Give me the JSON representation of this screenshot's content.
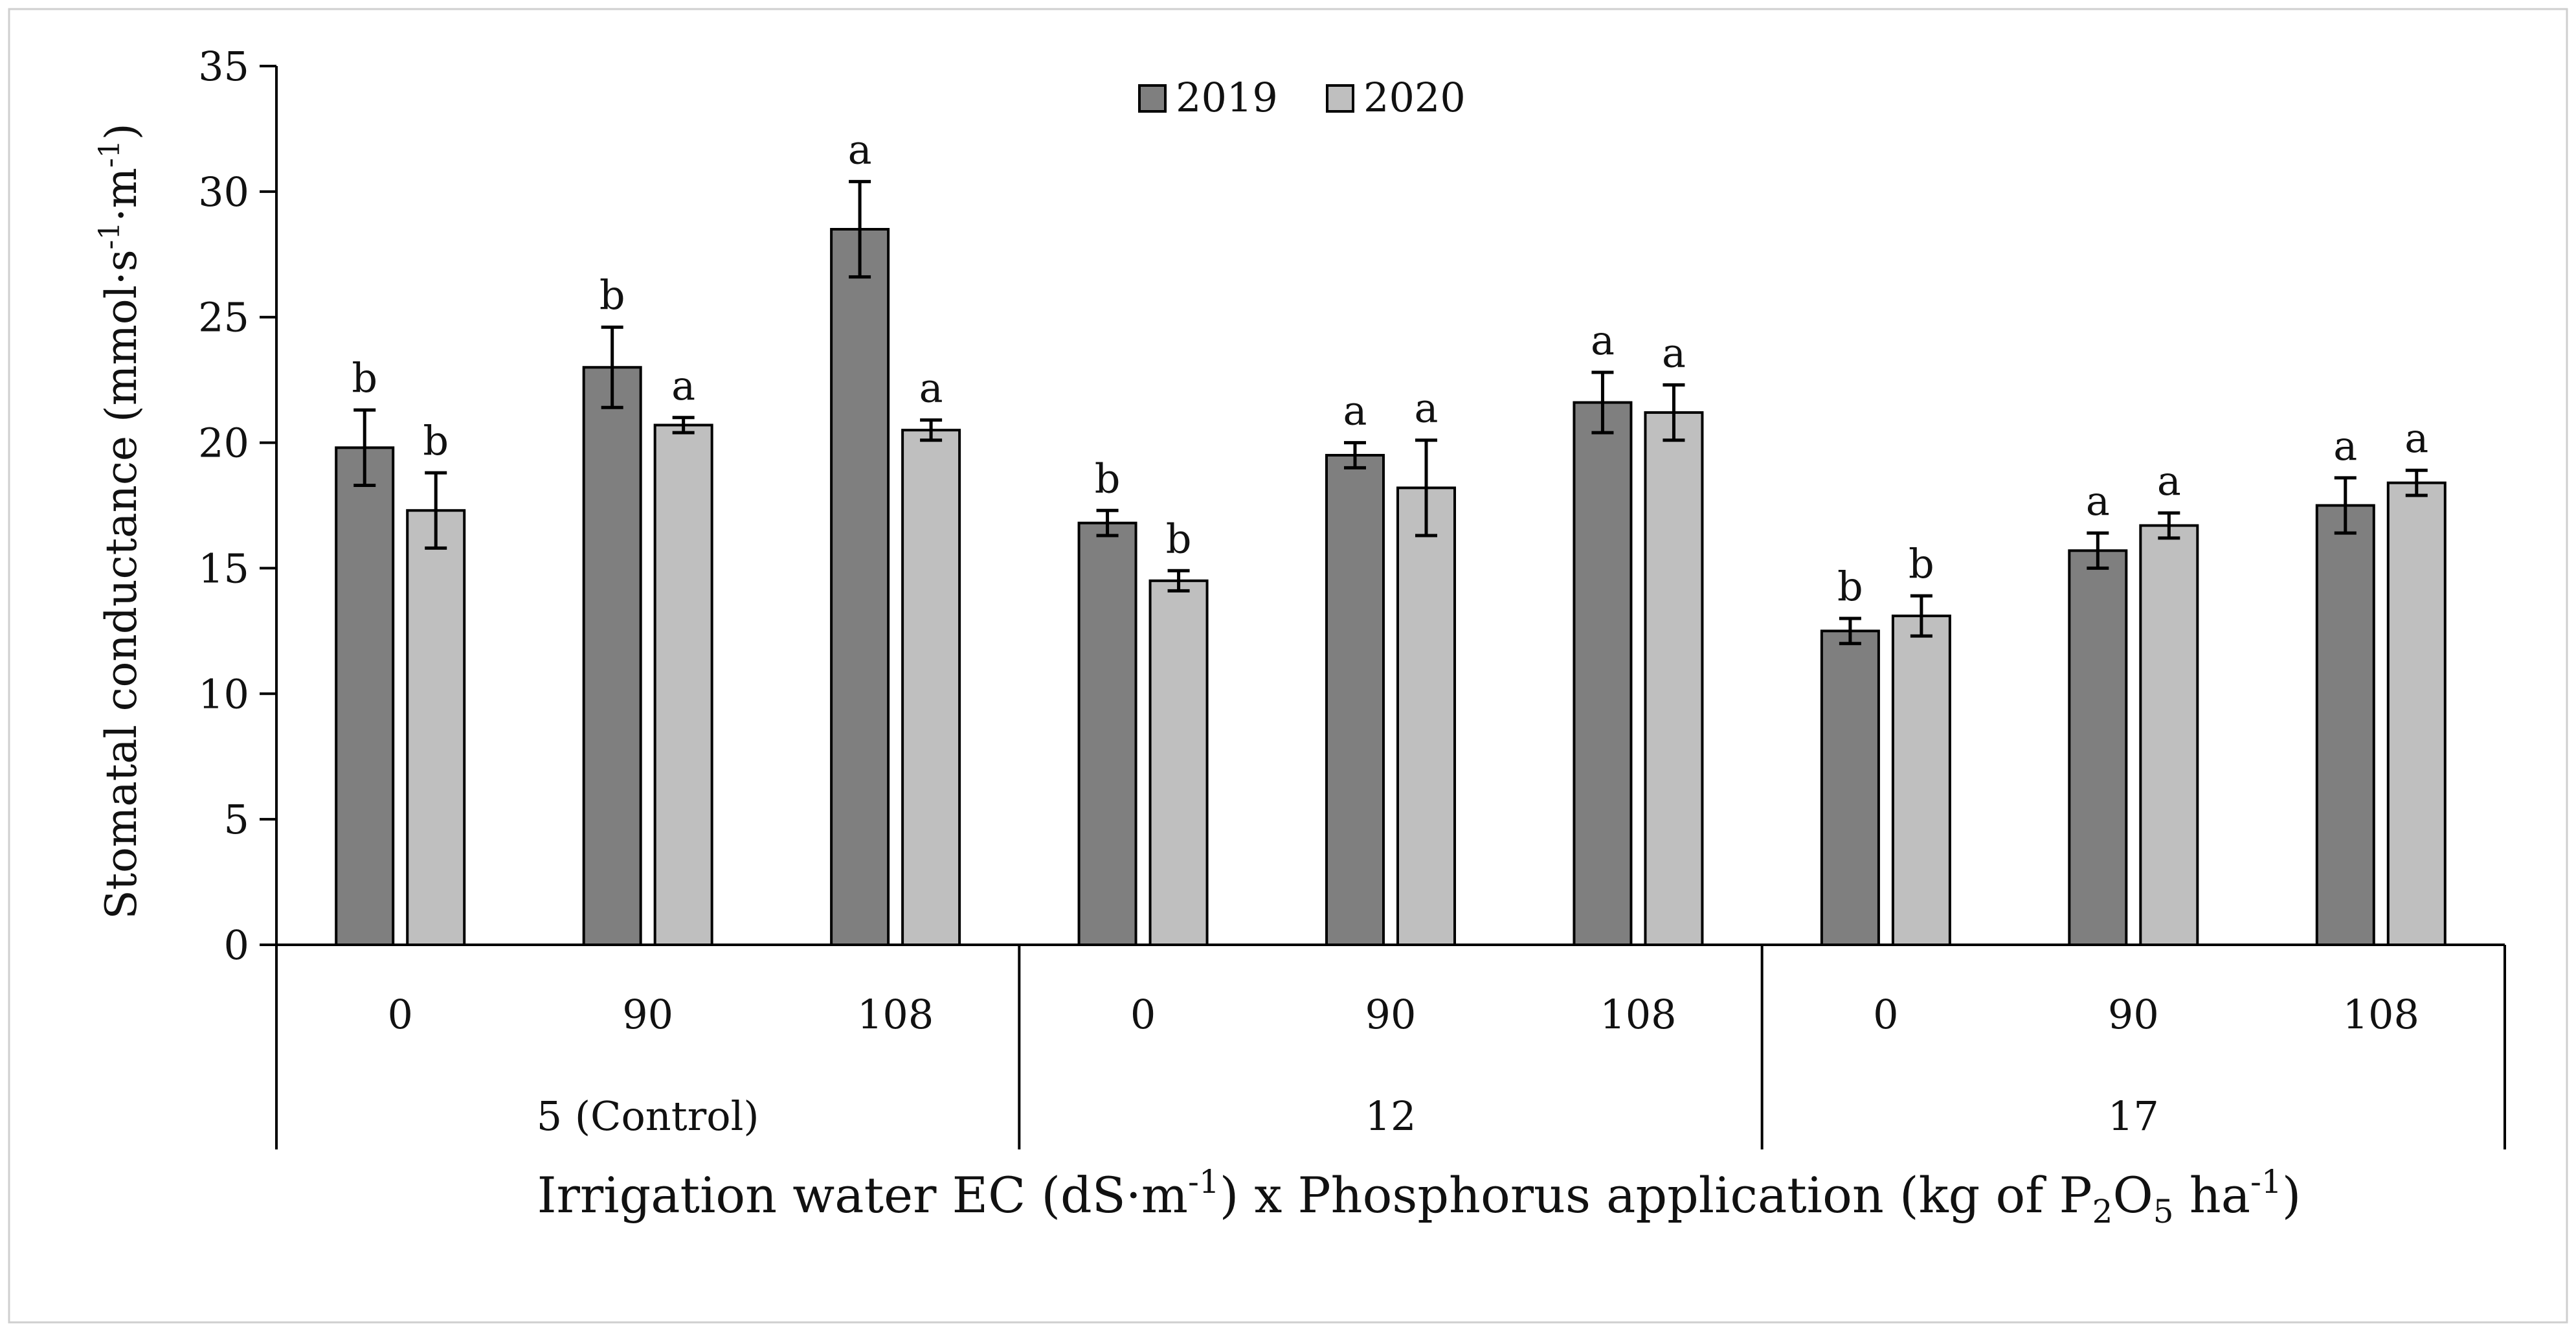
{
  "chart_data": {
    "type": "bar",
    "title": "",
    "ylabel": {
      "main": "Stomatal conductance (mmol·s",
      "sup1": "-1",
      "mid": "·m",
      "sup2": "-1",
      "end": ")"
    },
    "xlabel": {
      "part1": "Irrigation water EC (dS·m",
      "sup1": "-1",
      "part2": ") x Phosphorus application (kg of P",
      "sub1": "2",
      "part3": "O",
      "sub2": "5",
      "part4": " ha",
      "sup2": "-1",
      "part5": ")"
    },
    "ylim": [
      0,
      35
    ],
    "yticks": [
      0,
      5,
      10,
      15,
      20,
      25,
      30,
      35
    ],
    "groups": [
      {
        "label": "5 (Control)",
        "categories": [
          "0",
          "90",
          "108"
        ]
      },
      {
        "label": "12",
        "categories": [
          "0",
          "90",
          "108"
        ]
      },
      {
        "label": "17",
        "categories": [
          "0",
          "90",
          "108"
        ]
      }
    ],
    "series": [
      {
        "name": "2019",
        "color": "#7f7f7f",
        "values": [
          19.8,
          23.0,
          28.5,
          16.8,
          19.5,
          21.6,
          12.5,
          15.7,
          17.5
        ],
        "errors": [
          1.5,
          1.6,
          1.9,
          0.5,
          0.5,
          1.2,
          0.5,
          0.7,
          1.1
        ],
        "letters": [
          "b",
          "b",
          "a",
          "b",
          "a",
          "a",
          "b",
          "a",
          "a"
        ]
      },
      {
        "name": "2020",
        "color": "#bfbfbf",
        "values": [
          17.3,
          20.7,
          20.5,
          14.5,
          18.2,
          21.2,
          13.1,
          16.7,
          18.4
        ],
        "errors": [
          1.5,
          0.3,
          0.4,
          0.4,
          1.9,
          1.1,
          0.8,
          0.5,
          0.5
        ],
        "letters": [
          "b",
          "a",
          "a",
          "b",
          "a",
          "a",
          "b",
          "a",
          "a"
        ]
      }
    ],
    "legend_position": "top-center",
    "grid": false
  }
}
